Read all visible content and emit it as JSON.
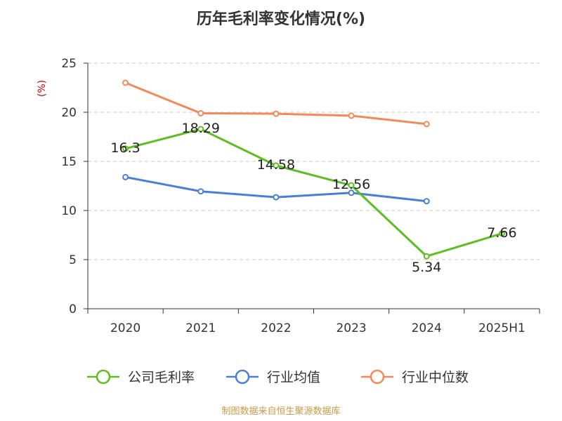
{
  "chart_data": {
    "type": "line",
    "title": "历年毛利率变化情况(%)",
    "ylabel": "(%)",
    "categories": [
      "2020",
      "2021",
      "2022",
      "2023",
      "2024",
      "2025H1"
    ],
    "ylim": [
      0,
      25
    ],
    "yticks": [
      "0",
      "5",
      "10",
      "15",
      "20",
      "25"
    ],
    "grid": true,
    "legend_position": "bottom",
    "series": [
      {
        "name": "公司毛利率",
        "color": "#5dbf1f",
        "values": [
          16.3,
          18.29,
          14.58,
          12.56,
          5.34,
          7.66
        ],
        "labels": [
          "16.3",
          "18.29",
          "14.58",
          "12.56",
          "5.34",
          "7.66"
        ]
      },
      {
        "name": "行业均值",
        "color": "#4a7fd6",
        "values": [
          13.4,
          11.95,
          11.35,
          11.8,
          10.95,
          null
        ]
      },
      {
        "name": "行业中位数",
        "color": "#f4895a",
        "values": [
          23.0,
          19.9,
          19.85,
          19.65,
          18.8,
          null
        ]
      }
    ]
  },
  "footer": {
    "source": "制图数据来自恒生聚源数据库"
  }
}
